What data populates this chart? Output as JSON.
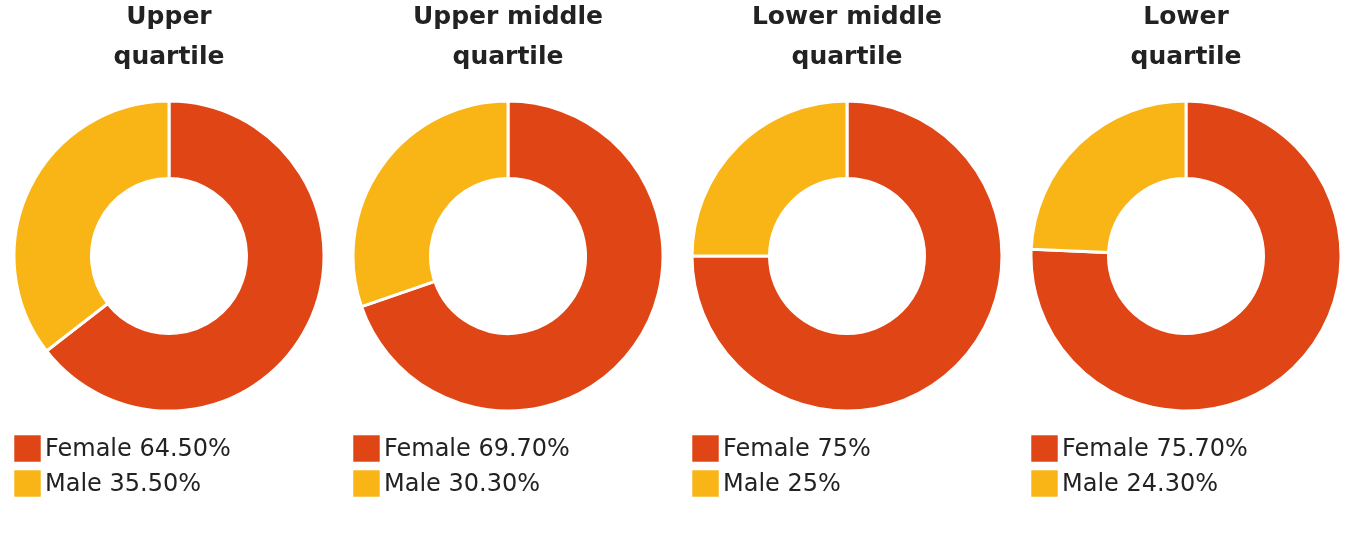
{
  "chart_data": [
    {
      "type": "donut",
      "title": "Upper quartile",
      "categories": [
        "Female",
        "Male"
      ],
      "values": [
        64.5,
        35.5
      ],
      "value_labels": [
        "64.50%",
        "35.50%"
      ],
      "colors": [
        "#e04515",
        "#f9b515"
      ],
      "legend": "bottom"
    },
    {
      "type": "donut",
      "title": "Upper middle quartile",
      "categories": [
        "Female",
        "Male"
      ],
      "values": [
        69.7,
        30.3
      ],
      "value_labels": [
        "69.70%",
        "30.30%"
      ],
      "colors": [
        "#e04515",
        "#f9b515"
      ],
      "legend": "bottom"
    },
    {
      "type": "donut",
      "title": "Lower middle quartile",
      "categories": [
        "Female",
        "Male"
      ],
      "values": [
        75,
        25
      ],
      "value_labels": [
        "75%",
        "25%"
      ],
      "colors": [
        "#e04515",
        "#f9b515"
      ],
      "legend": "bottom"
    },
    {
      "type": "donut",
      "title": "Lower quartile",
      "categories": [
        "Female",
        "Male"
      ],
      "values": [
        75.7,
        24.3
      ],
      "value_labels": [
        "75.70%",
        "24.30%"
      ],
      "colors": [
        "#e04515",
        "#f9b515"
      ],
      "legend": "bottom"
    }
  ]
}
